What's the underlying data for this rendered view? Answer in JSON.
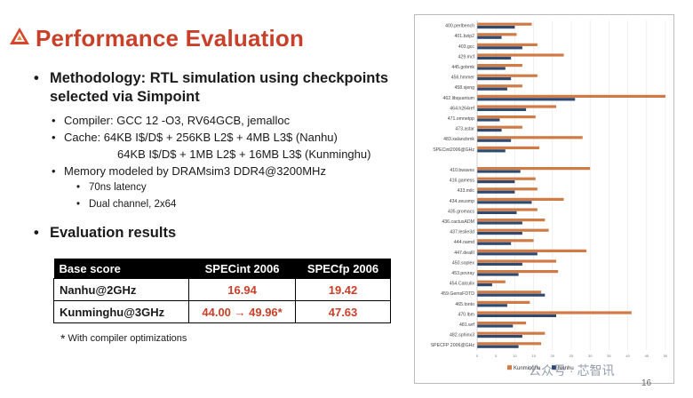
{
  "slide": {
    "title": "Performance Evaluation",
    "methodology": "Methodology: RTL simulation using checkpoints selected via Simpoint",
    "compiler": "Compiler: GCC 12 -O3, RV64GCB, jemalloc",
    "cache_line1": "Cache: 64KB I$/D$ + 256KB L2$ + 4MB L3$ (Nanhu)",
    "cache_line2": "64KB I$/D$ + 1MB L2$ + 16MB L3$ (Kunminghu)",
    "memory": "Memory modeled by DRAMsim3 DDR4@3200MHz",
    "latency": "70ns latency",
    "channel": "Dual channel, 2x64",
    "eval_heading": "Evaluation results",
    "table": {
      "headers": [
        "Base score",
        "SPECint 2006",
        "SPECfp 2006"
      ],
      "rows": [
        {
          "name": "Nanhu@2GHz",
          "int": "16.94",
          "fp": "19.42"
        },
        {
          "name": "Kunminghu@3GHz",
          "int": "44.00 → 49.96*",
          "fp": "47.63"
        }
      ]
    },
    "footnote_star": "*",
    "footnote_text": "With compiler optimizations",
    "watermark": "公众号 · 芯智讯",
    "page_number": "16"
  },
  "colors": {
    "accent": "#c8402a",
    "kunminghu": "#d07a45",
    "nanhu": "#2f4a6e"
  },
  "chart_data": {
    "type": "bar",
    "orientation": "horizontal",
    "categories": [
      "400.perlbench",
      "401.bzip2",
      "403.gcc",
      "429.mcf",
      "445.gobmk",
      "456.hmmer",
      "458.sjeng",
      "462.libquantum",
      "464.h264ref",
      "471.omnetpp",
      "473.astar",
      "483.xalancbmk",
      "SPECint2006@GHz",
      "",
      "410.bwaves",
      "416.gamess",
      "433.milc",
      "434.zeusmp",
      "435.gromacs",
      "436.cactusADM",
      "437.leslie3d",
      "444.namd",
      "447.dealII",
      "450.soplex",
      "453.povray",
      "454.Calculix",
      "459.GemsFDTD",
      "465.tonto",
      "470.lbm",
      "481.wrf",
      "482.sphinx3",
      "SPECFP 2006@GHz"
    ],
    "series": [
      {
        "name": "Kunminghu",
        "values": [
          14.5,
          10.5,
          16,
          23,
          12,
          16,
          12,
          50,
          21,
          15.5,
          12,
          28,
          16.5,
          null,
          30,
          15.5,
          16,
          23,
          16,
          18,
          19,
          15,
          29,
          21,
          21.5,
          7.5,
          17,
          14,
          41,
          13,
          18,
          17
        ]
      },
      {
        "name": "Nanhu",
        "values": [
          10,
          6.5,
          12,
          9,
          7.5,
          9,
          8,
          26,
          13,
          6,
          6.5,
          9,
          7.5,
          null,
          11.5,
          10,
          10,
          14.5,
          10.5,
          12,
          12,
          9,
          16,
          12,
          11,
          4,
          18,
          8,
          21,
          9.5,
          12,
          11
        ]
      }
    ],
    "xlim": [
      0,
      50
    ],
    "x_ticks": [
      "0",
      "5",
      "10",
      "15",
      "20",
      "25",
      "30",
      "35",
      "40",
      "45",
      "50"
    ],
    "legend_position": "bottom",
    "grid": true
  }
}
